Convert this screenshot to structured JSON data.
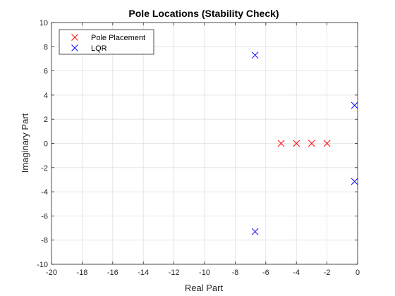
{
  "chart_data": {
    "type": "scatter",
    "title": "Pole Locations (Stability Check)",
    "xlabel": "Real Part",
    "ylabel": "Imaginary Part",
    "xlim": [
      -20,
      0
    ],
    "ylim": [
      -10,
      10
    ],
    "xticks": [
      -20,
      -18,
      -16,
      -14,
      -12,
      -10,
      -8,
      -6,
      -4,
      -2,
      0
    ],
    "yticks": [
      -10,
      -8,
      -6,
      -4,
      -2,
      0,
      2,
      4,
      6,
      8,
      10
    ],
    "grid": true,
    "legend_position": "top-left",
    "marker": "x",
    "series": [
      {
        "name": "Pole Placement",
        "color": "#ff0000",
        "points": [
          {
            "x": -5,
            "y": 0
          },
          {
            "x": -4,
            "y": 0
          },
          {
            "x": -3,
            "y": 0
          },
          {
            "x": -2,
            "y": 0
          }
        ]
      },
      {
        "name": "LQR",
        "color": "#0000ff",
        "points": [
          {
            "x": -6.7,
            "y": 7.3
          },
          {
            "x": -6.7,
            "y": -7.3
          },
          {
            "x": -0.2,
            "y": 3.15
          },
          {
            "x": -0.2,
            "y": -3.15
          }
        ]
      }
    ]
  }
}
